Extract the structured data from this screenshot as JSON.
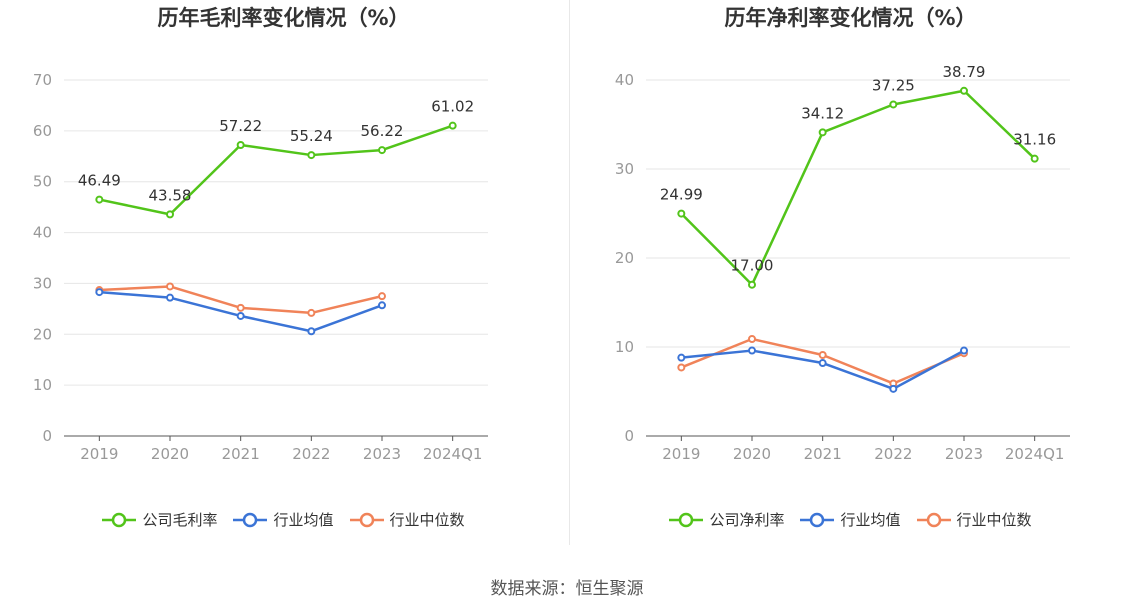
{
  "footer": {
    "source": "数据来源：恒生聚源"
  },
  "colors": {
    "company": "#52c41a",
    "avg": "#3b74d6",
    "median": "#f08359",
    "grid": "#e6e6e6",
    "axis": "#555555",
    "tick": "#999999"
  },
  "chart_data": [
    {
      "type": "line",
      "title": "历年毛利率变化情况（%）",
      "categories": [
        "2019",
        "2020",
        "2021",
        "2022",
        "2023",
        "2024Q1"
      ],
      "ylim": [
        0,
        70
      ],
      "yticks": [
        0,
        10,
        20,
        30,
        40,
        50,
        60,
        70
      ],
      "grid": true,
      "legend_position": "bottom",
      "series": [
        {
          "name": "公司毛利率",
          "color": "#52c41a",
          "values": [
            46.49,
            43.58,
            57.22,
            55.24,
            56.22,
            61.02
          ],
          "labels": [
            "46.49",
            "43.58",
            "57.22",
            "55.24",
            "56.22",
            "61.02"
          ]
        },
        {
          "name": "行业均值",
          "color": "#3b74d6",
          "values": [
            28.3,
            27.2,
            23.6,
            20.6,
            25.7,
            null
          ]
        },
        {
          "name": "行业中位数",
          "color": "#f08359",
          "values": [
            28.7,
            29.4,
            25.2,
            24.2,
            27.5,
            null
          ]
        }
      ]
    },
    {
      "type": "line",
      "title": "历年净利率变化情况（%）",
      "categories": [
        "2019",
        "2020",
        "2021",
        "2022",
        "2023",
        "2024Q1"
      ],
      "ylim": [
        0,
        40
      ],
      "yticks": [
        0,
        10,
        20,
        30,
        40
      ],
      "grid": true,
      "legend_position": "bottom",
      "series": [
        {
          "name": "公司净利率",
          "color": "#52c41a",
          "values": [
            24.99,
            17.0,
            34.12,
            37.25,
            38.79,
            31.16
          ],
          "labels": [
            "24.99",
            "17.00",
            "34.12",
            "37.25",
            "38.79",
            "31.16"
          ]
        },
        {
          "name": "行业均值",
          "color": "#3b74d6",
          "values": [
            8.8,
            9.6,
            8.2,
            5.3,
            9.6,
            null
          ]
        },
        {
          "name": "行业中位数",
          "color": "#f08359",
          "values": [
            7.7,
            10.9,
            9.1,
            5.9,
            9.3,
            null
          ]
        }
      ]
    }
  ]
}
